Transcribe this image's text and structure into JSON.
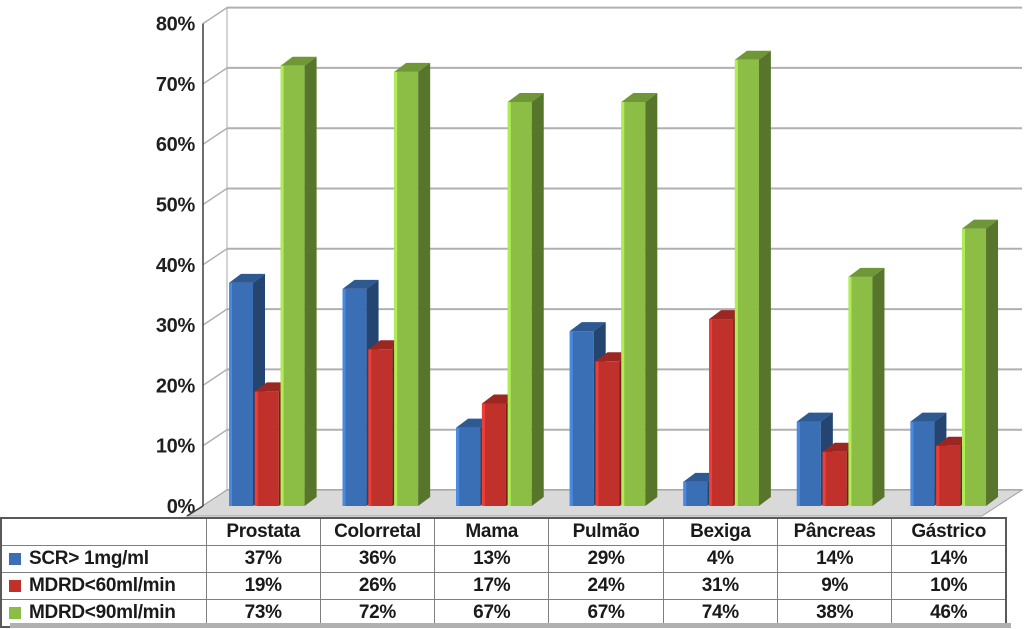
{
  "chart_data": {
    "type": "bar",
    "style": "3d-clustered-column",
    "title": "",
    "xlabel": "",
    "ylabel": "",
    "categories": [
      "Prostata",
      "Colorretal",
      "Mama",
      "Pulmão",
      "Bexiga",
      "Pâncreas",
      "Gástrico"
    ],
    "series": [
      {
        "name": "SCR> 1mg/ml",
        "color": "#3A6FB5",
        "values": [
          37,
          36,
          13,
          29,
          4,
          14,
          14
        ]
      },
      {
        "name": "MDRD<60ml/min",
        "color": "#C0312B",
        "values": [
          19,
          26,
          17,
          24,
          31,
          9,
          10
        ]
      },
      {
        "name": "MDRD<90ml/min",
        "color": "#8CBD45",
        "values": [
          73,
          72,
          67,
          67,
          74,
          38,
          46
        ]
      }
    ],
    "ylim": [
      0,
      80
    ],
    "y_ticks": [
      "0%",
      "10%",
      "20%",
      "30%",
      "40%",
      "50%",
      "60%",
      "70%",
      "80%"
    ],
    "value_suffix": "%",
    "grid": true,
    "legend_position": "data-table-left"
  },
  "ui_colors": {
    "gridline": "#b0b0b0",
    "wall_border": "#a8a8a8",
    "floor_fill": "#d9d9d9",
    "floor_border": "#a0a0a0",
    "axis_line": "#3f3f3f",
    "text": "#1a1a1a",
    "table_border": "#7f7f7f",
    "table_outer_border": "#595959",
    "shadow": "#b0b0b0",
    "background": "#ffffff"
  }
}
